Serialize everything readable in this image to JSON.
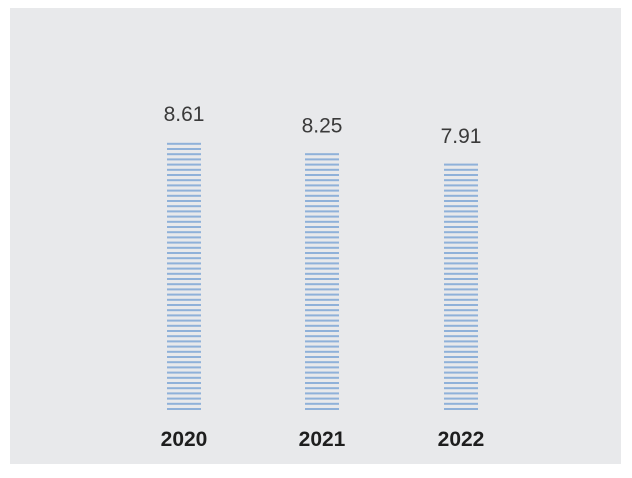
{
  "chart_data": {
    "type": "bar",
    "categories": [
      "2020",
      "2021",
      "2022"
    ],
    "values": [
      8.61,
      8.25,
      7.91
    ],
    "value_labels": [
      "8.61",
      "8.25",
      "7.91"
    ],
    "bar_color": "#8fb1d9",
    "background_color": "#e8e9eb",
    "grid": false,
    "legend": "none"
  }
}
